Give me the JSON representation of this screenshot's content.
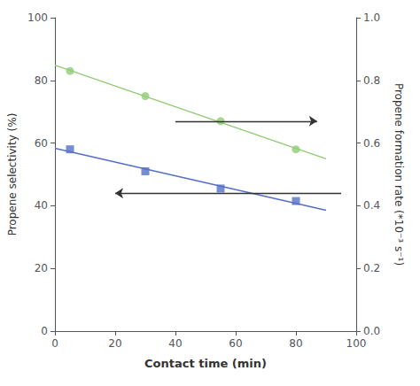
{
  "chart_data": {
    "type": "scatter",
    "xlabel": "Contact time (min)",
    "ylabel": "Propene selectivity (%)",
    "y2label": "Propene formation rate (*10⁻³ s⁻¹)",
    "xlim": [
      0,
      100
    ],
    "xticks": [
      0,
      20,
      40,
      60,
      80,
      100
    ],
    "ylim": [
      0,
      100
    ],
    "yticks": [
      0,
      20,
      40,
      60,
      80,
      100
    ],
    "y2lim": [
      0.0,
      1.0
    ],
    "y2ticks": [
      {
        "value": 0.0,
        "label": "0.0"
      },
      0.2,
      0.4,
      0.6,
      0.8,
      {
        "value": 1.0,
        "label": "1.0"
      }
    ],
    "grid": false,
    "series": [
      {
        "type": "line",
        "axis": "y2",
        "line_style": "solid",
        "x": [
          0,
          90
        ],
        "values": [
          0.8486,
          0.5498
        ]
      },
      {
        "type": "line",
        "axis": "y",
        "line_style": "solid",
        "x": [
          0,
          90
        ],
        "values": [
          58.35,
          38.55
        ]
      },
      {
        "type": "scatter",
        "axis": "y2",
        "marker": "circle",
        "x": [
          5,
          30,
          55,
          80
        ],
        "values": [
          0.83,
          0.75,
          0.67,
          0.58
        ]
      },
      {
        "type": "scatter",
        "axis": "y",
        "marker": "square",
        "x": [
          5,
          30,
          55,
          80
        ],
        "values": [
          58,
          51,
          45.5,
          41.5
        ]
      }
    ],
    "annotations": [
      {
        "type": "arrow",
        "axis": "y",
        "x1": 95,
        "x2": 20,
        "y": 44
      },
      {
        "type": "arrow",
        "axis": "y2",
        "x1": 40,
        "x2": 87,
        "y": 0.67
      }
    ]
  }
}
